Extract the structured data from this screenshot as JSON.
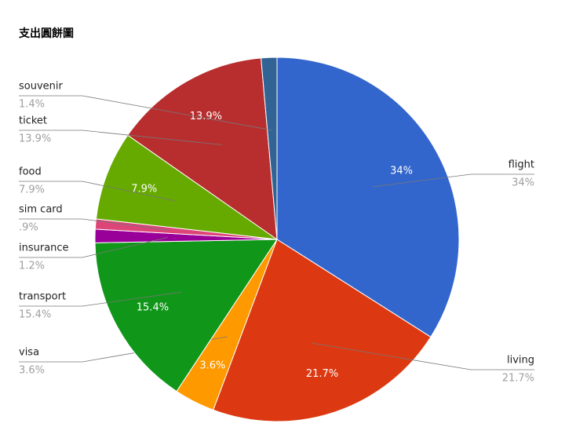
{
  "chart_data": {
    "type": "pie",
    "title": "支出圓餅圖",
    "categories": [
      "flight",
      "living",
      "visa",
      "transport",
      "insurance",
      "sim card",
      "food",
      "ticket",
      "souvenir"
    ],
    "values": [
      34,
      21.7,
      3.6,
      15.4,
      1.2,
      0.9,
      7.9,
      13.9,
      1.4
    ],
    "value_labels": [
      "34%",
      "21.7%",
      "3.6%",
      "15.4%",
      "1.2%",
      ".9%",
      "7.9%",
      "13.9%",
      "1.4%"
    ],
    "colors": [
      "#3366cc",
      "#dc3912",
      "#ff9900",
      "#109618",
      "#990099",
      "#dd4477",
      "#66aa00",
      "#b82e2e",
      "#316395"
    ]
  }
}
